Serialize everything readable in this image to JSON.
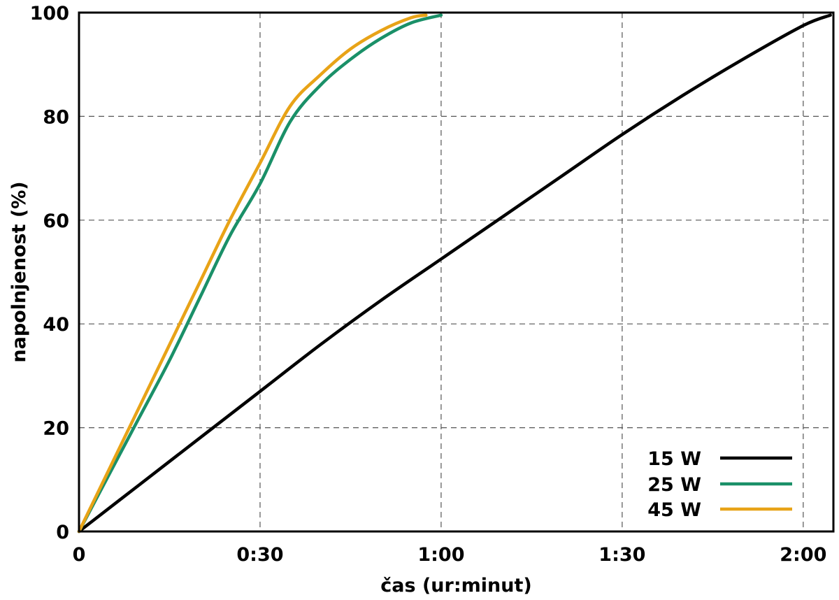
{
  "chart_data": {
    "type": "line",
    "xlabel": "čas (ur:minut)",
    "ylabel": "napolnjenost (%)",
    "xlim": [
      0,
      125
    ],
    "ylim": [
      0,
      100
    ],
    "x_ticks": [
      {
        "value": 0,
        "label": "0"
      },
      {
        "value": 30,
        "label": "0:30"
      },
      {
        "value": 60,
        "label": "1:00"
      },
      {
        "value": 90,
        "label": "1:30"
      },
      {
        "value": 120,
        "label": "2:00"
      }
    ],
    "y_ticks": [
      {
        "value": 0,
        "label": "0"
      },
      {
        "value": 20,
        "label": "20"
      },
      {
        "value": 40,
        "label": "40"
      },
      {
        "value": 60,
        "label": "60"
      },
      {
        "value": 80,
        "label": "80"
      },
      {
        "value": 100,
        "label": "100"
      }
    ],
    "grid": true,
    "legend_position": "bottom-right",
    "series": [
      {
        "name": "15 W",
        "color": "#000000",
        "x": [
          0,
          10,
          20,
          30,
          40,
          50,
          60,
          70,
          80,
          90,
          100,
          110,
          120,
          124.5
        ],
        "y": [
          0,
          9,
          18,
          27,
          36,
          44.5,
          52.5,
          60.5,
          68.5,
          76.5,
          84,
          91,
          97.5,
          99.5
        ]
      },
      {
        "name": "25 W",
        "color": "#1a9068",
        "x": [
          0,
          5,
          10,
          15,
          20,
          25,
          30,
          35,
          40,
          45,
          50,
          55,
          60
        ],
        "y": [
          0,
          11,
          22,
          33,
          45,
          57,
          67,
          79,
          86,
          91,
          95,
          98,
          99.5
        ]
      },
      {
        "name": "45 W",
        "color": "#e8a317",
        "x": [
          0,
          5,
          10,
          15,
          20,
          25,
          30,
          35,
          40,
          45,
          50,
          55,
          57.5
        ],
        "y": [
          0,
          12,
          24,
          36,
          48,
          60,
          71,
          82,
          88,
          93,
          96.5,
          99,
          99.5
        ]
      }
    ]
  }
}
